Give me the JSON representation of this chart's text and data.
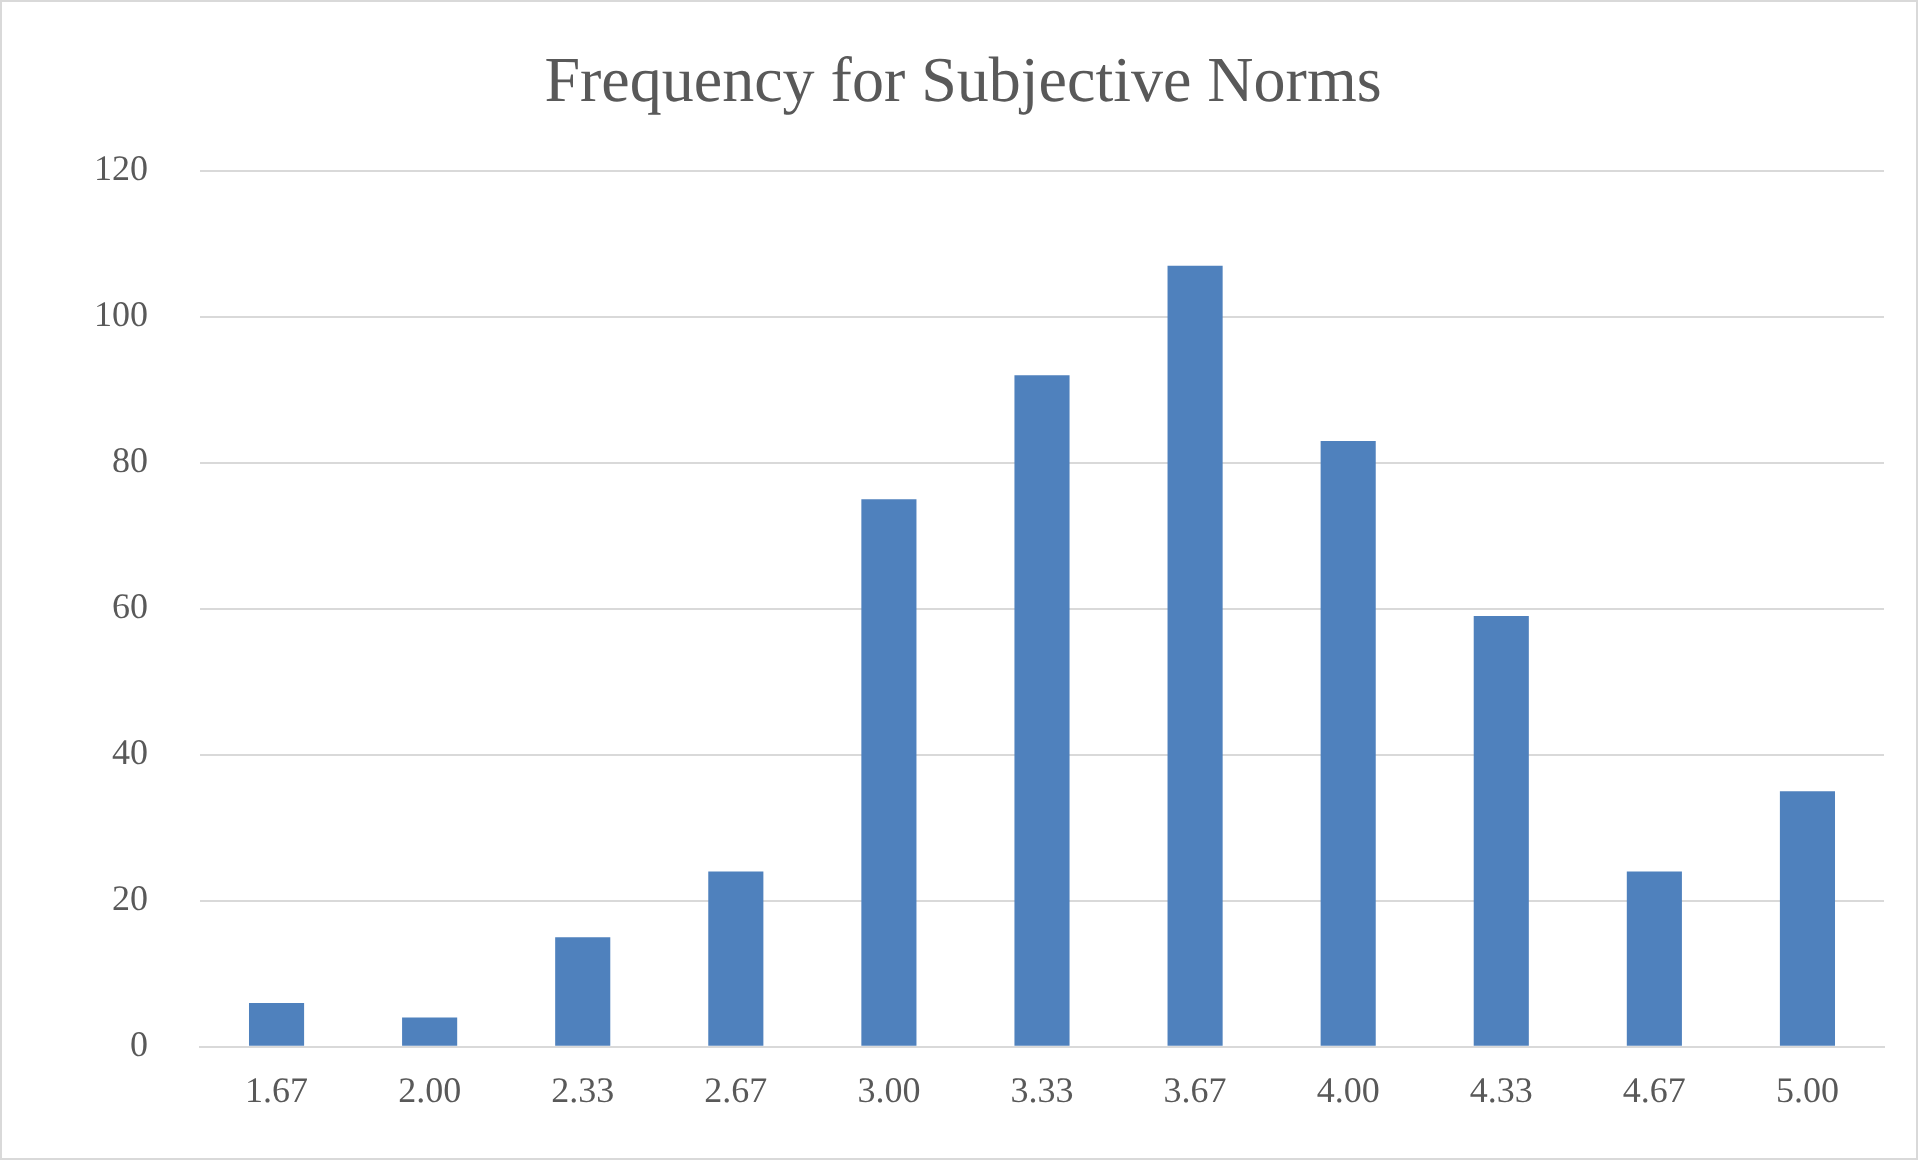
{
  "chart_data": {
    "type": "bar",
    "title": "Frequency for Subjective Norms",
    "categories": [
      "1.67",
      "2.00",
      "2.33",
      "2.67",
      "3.00",
      "3.33",
      "3.67",
      "4.00",
      "4.33",
      "4.67",
      "5.00"
    ],
    "values": [
      6,
      4,
      15,
      24,
      75,
      92,
      107,
      83,
      59,
      24,
      35
    ],
    "color": "#4f81bd",
    "ylim": [
      0,
      120
    ],
    "yticks": [
      0,
      20,
      40,
      60,
      80,
      100,
      120
    ],
    "grid": "y"
  }
}
